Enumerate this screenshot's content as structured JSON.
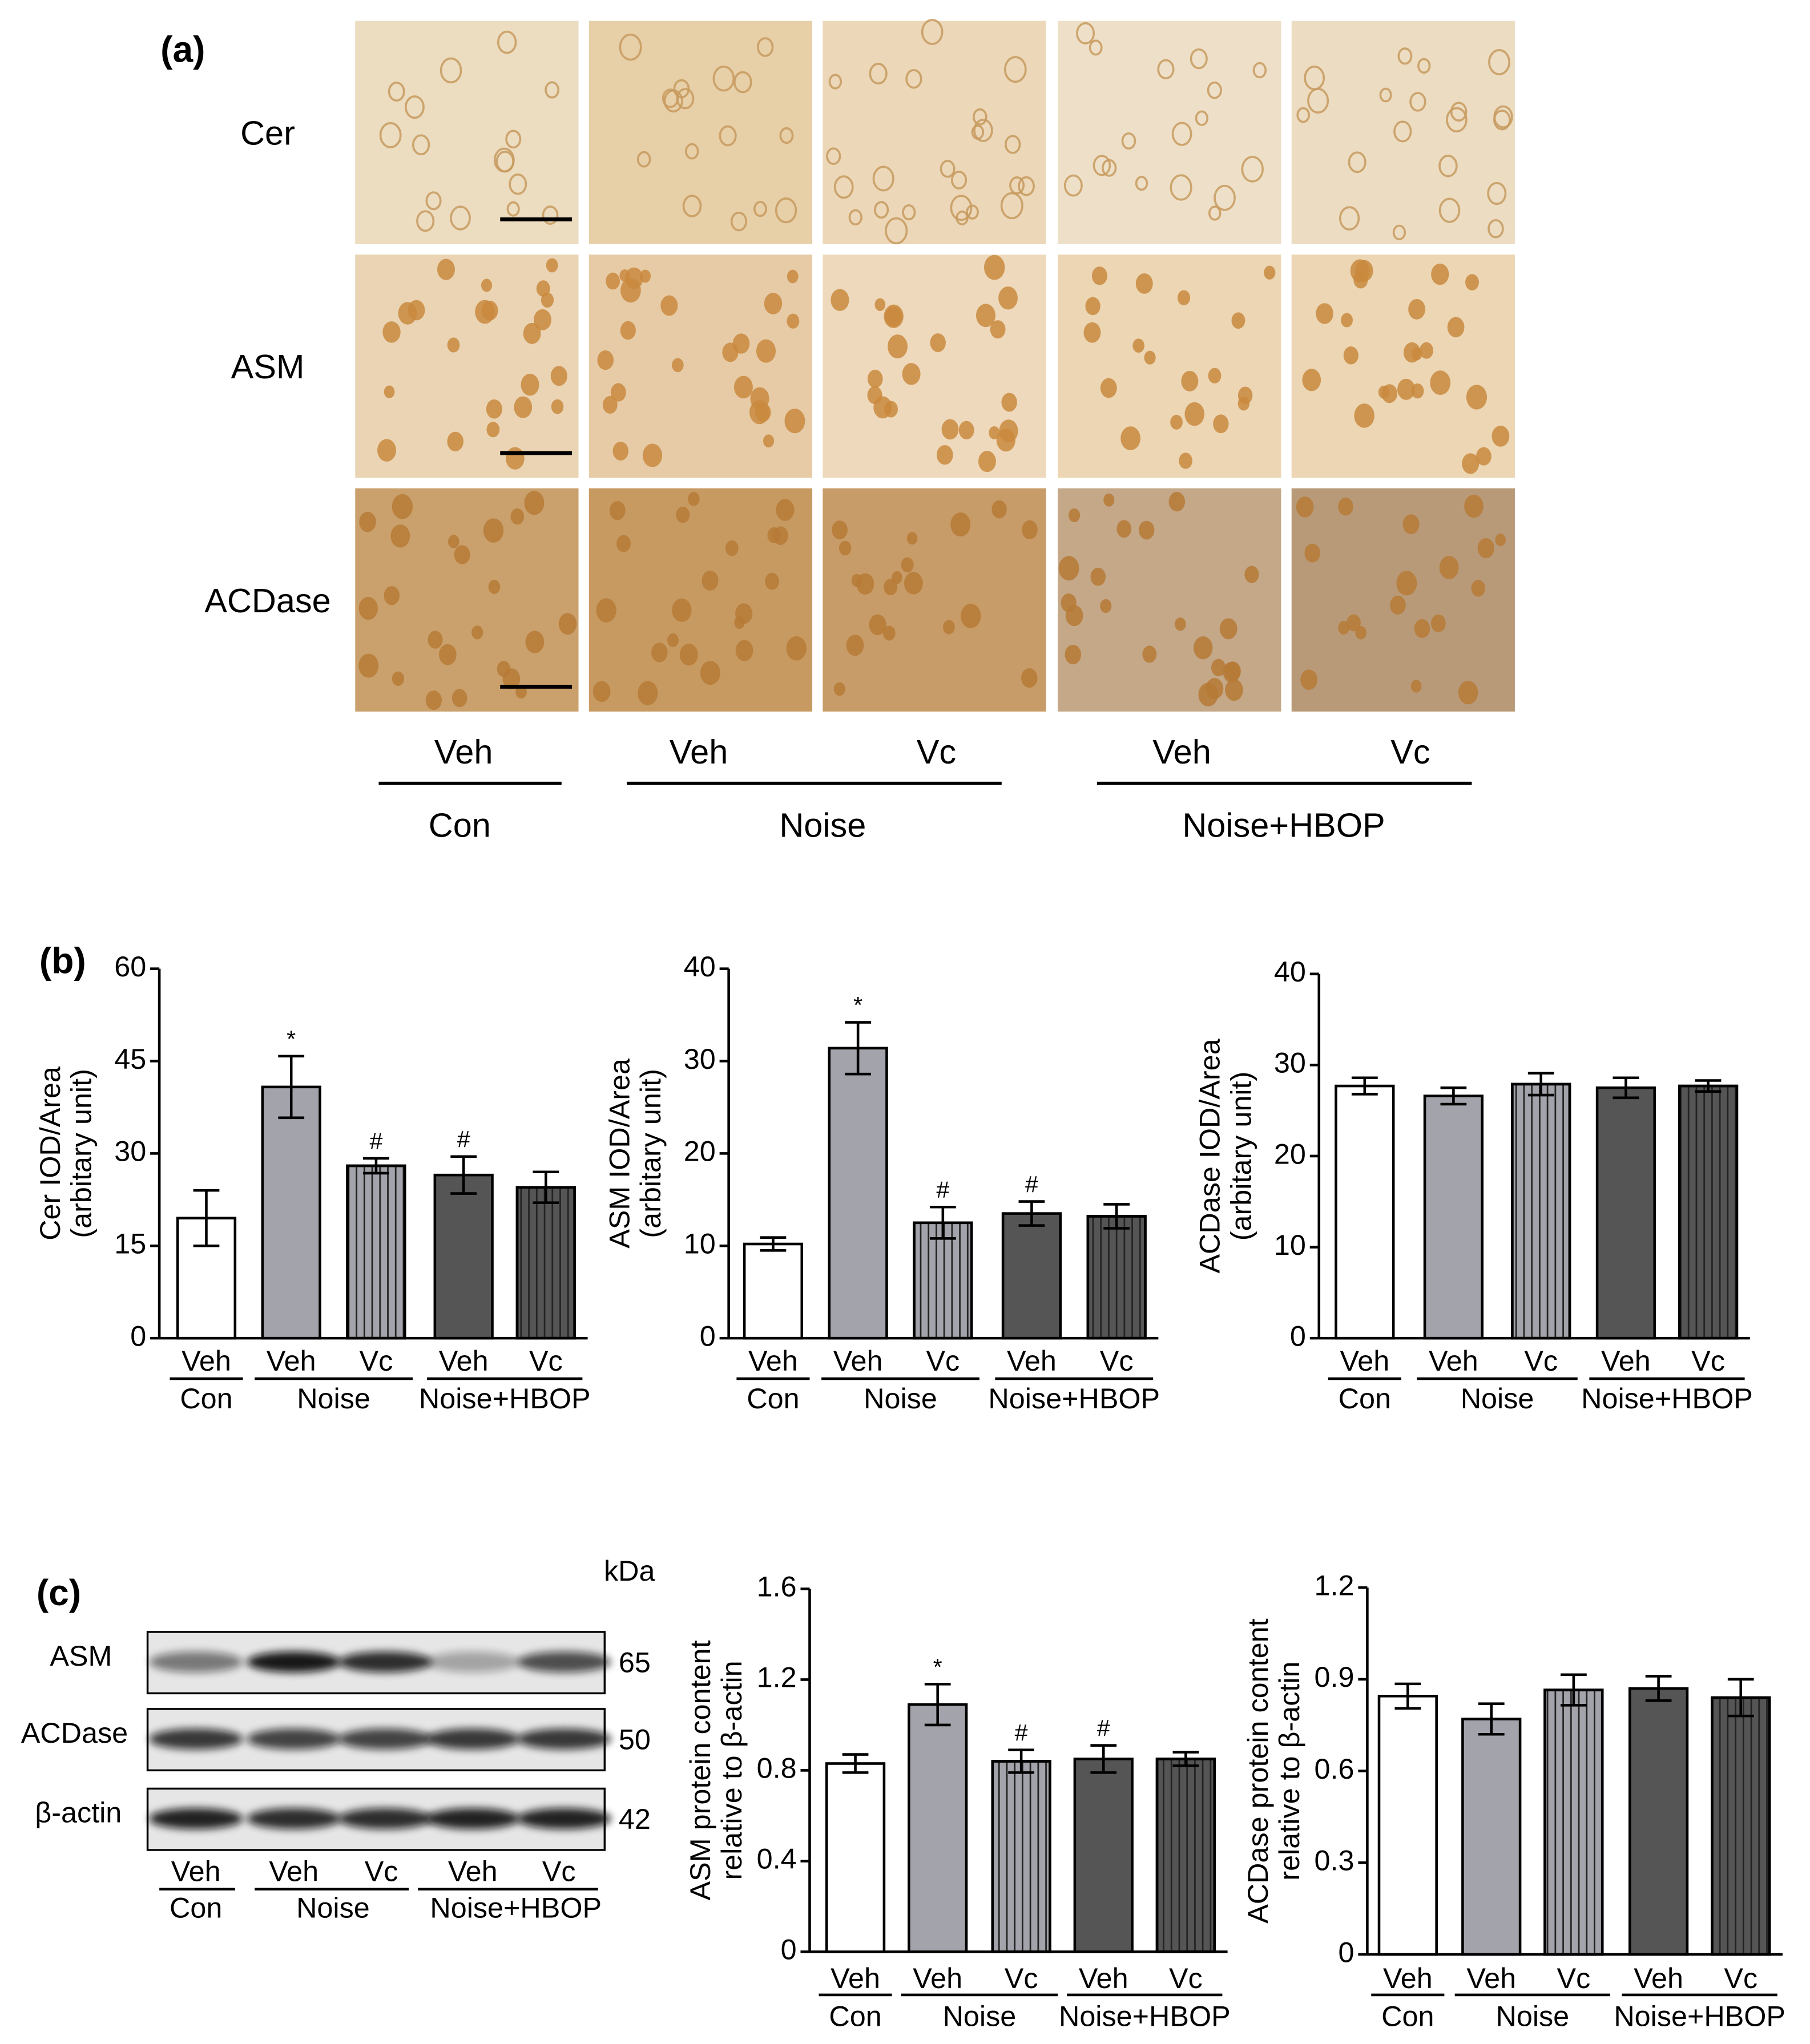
{
  "panels": {
    "a": "(a)",
    "b": "(b)",
    "c": "(c)"
  },
  "histology": {
    "rows": [
      "Cer",
      "ASM",
      "ACDase"
    ],
    "categories": [
      "Veh",
      "Veh",
      "Vc",
      "Veh",
      "Vc"
    ],
    "groups": [
      "Con",
      "Noise",
      "Noise+HBOP"
    ]
  },
  "blot": {
    "unit": "kDa",
    "rows": [
      {
        "label": "ASM",
        "kda": 65
      },
      {
        "label": "ACDase",
        "kda": 50
      },
      {
        "label": "β-actin",
        "kda": 42
      }
    ],
    "categories": [
      "Veh",
      "Veh",
      "Vc",
      "Veh",
      "Vc"
    ],
    "groups": [
      "Con",
      "Noise",
      "Noise+HBOP"
    ]
  },
  "chart_data": [
    {
      "type": "bar",
      "ylabel": [
        "Cer IOD/Area",
        "(arbitary unit)"
      ],
      "categories": [
        "Veh",
        "Veh",
        "Vc",
        "Veh",
        "Vc"
      ],
      "groups": [
        "Con",
        "Noise",
        "Noise+HBOP"
      ],
      "values": [
        19.5,
        40.8,
        28,
        26.5,
        24.5
      ],
      "errors": [
        4.5,
        5,
        1.2,
        3,
        2.5
      ],
      "significance": [
        null,
        "*",
        "#",
        "#",
        null
      ],
      "colors": [
        "#ffffff",
        "#a3a3ab",
        "#a3a3ab",
        "#555555",
        "#555555"
      ],
      "hatch": [
        false,
        false,
        true,
        false,
        true
      ],
      "ylim": [
        0,
        60
      ],
      "yticks": [
        0,
        15,
        30,
        45,
        60
      ]
    },
    {
      "type": "bar",
      "ylabel": [
        "ASM IOD/Area",
        "(arbitary unit)"
      ],
      "categories": [
        "Veh",
        "Veh",
        "Vc",
        "Veh",
        "Vc"
      ],
      "groups": [
        "Con",
        "Noise",
        "Noise+HBOP"
      ],
      "values": [
        10.2,
        31.4,
        12.5,
        13.5,
        13.2
      ],
      "errors": [
        0.7,
        2.8,
        1.7,
        1.3,
        1.3
      ],
      "significance": [
        null,
        "*",
        "#",
        "#",
        null
      ],
      "colors": [
        "#ffffff",
        "#a3a3ab",
        "#a3a3ab",
        "#555555",
        "#555555"
      ],
      "hatch": [
        false,
        false,
        true,
        false,
        true
      ],
      "ylim": [
        0,
        40
      ],
      "yticks": [
        0,
        10,
        20,
        30,
        40
      ]
    },
    {
      "type": "bar",
      "ylabel": [
        "ACDase IOD/Area",
        "(arbitary unit)"
      ],
      "categories": [
        "Veh",
        "Veh",
        "Vc",
        "Veh",
        "Vc"
      ],
      "groups": [
        "Con",
        "Noise",
        "Noise+HBOP"
      ],
      "values": [
        27.7,
        26.6,
        27.9,
        27.5,
        27.7
      ],
      "errors": [
        0.9,
        0.9,
        1.2,
        1.1,
        0.6
      ],
      "significance": [
        null,
        null,
        null,
        null,
        null
      ],
      "colors": [
        "#ffffff",
        "#a3a3ab",
        "#a3a3ab",
        "#555555",
        "#555555"
      ],
      "hatch": [
        false,
        false,
        true,
        false,
        true
      ],
      "ylim": [
        0,
        40
      ],
      "yticks": [
        0,
        10,
        20,
        30,
        40
      ]
    },
    {
      "type": "bar",
      "ylabel": [
        "ASM protein content",
        "relative to β-actin"
      ],
      "categories": [
        "Veh",
        "Veh",
        "Vc",
        "Veh",
        "Vc"
      ],
      "groups": [
        "Con",
        "Noise",
        "Noise+HBOP"
      ],
      "values": [
        0.83,
        1.09,
        0.84,
        0.85,
        0.85
      ],
      "errors": [
        0.04,
        0.09,
        0.05,
        0.06,
        0.03
      ],
      "significance": [
        null,
        "*",
        "#",
        "#",
        null
      ],
      "colors": [
        "#ffffff",
        "#a3a3ab",
        "#a3a3ab",
        "#555555",
        "#555555"
      ],
      "hatch": [
        false,
        false,
        true,
        false,
        true
      ],
      "ylim": [
        0,
        1.6
      ],
      "yticks": [
        0,
        0.4,
        0.8,
        1.2,
        1.6
      ]
    },
    {
      "type": "bar",
      "ylabel": [
        "ACDase protein content",
        "relative to β-actin"
      ],
      "categories": [
        "Veh",
        "Veh",
        "Vc",
        "Veh",
        "Vc"
      ],
      "groups": [
        "Con",
        "Noise",
        "Noise+HBOP"
      ],
      "values": [
        0.845,
        0.77,
        0.865,
        0.87,
        0.84
      ],
      "errors": [
        0.04,
        0.05,
        0.05,
        0.04,
        0.06
      ],
      "significance": [
        null,
        null,
        null,
        null,
        null
      ],
      "colors": [
        "#ffffff",
        "#a3a3ab",
        "#a3a3ab",
        "#555555",
        "#555555"
      ],
      "hatch": [
        false,
        false,
        true,
        false,
        true
      ],
      "ylim": [
        0,
        1.2
      ],
      "yticks": [
        0,
        0.3,
        0.6,
        0.9,
        1.2
      ]
    }
  ]
}
